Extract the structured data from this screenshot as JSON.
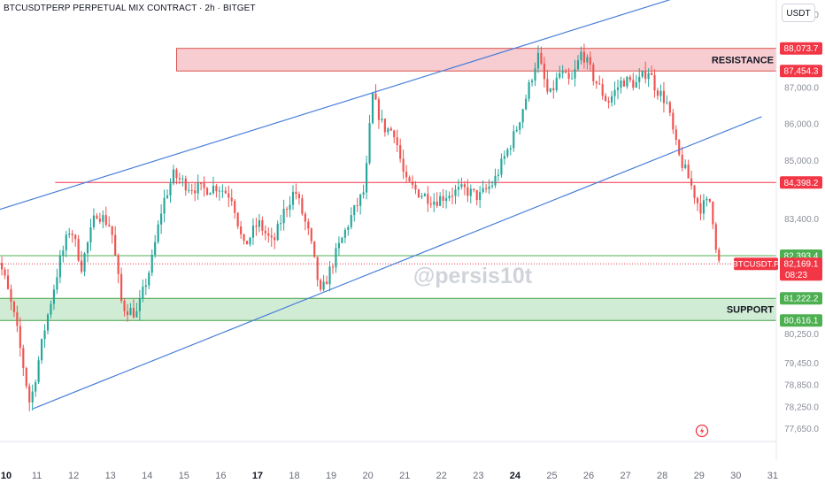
{
  "header": {
    "title": "BTCUSDTPERP PERPETUAL MIX CONTRACT · 2h · BITGET",
    "currency": "USDT"
  },
  "watermark": "@persis10t",
  "icons": {
    "flash": "lightning-bolt-icon"
  },
  "colors": {
    "up": "#26a69a",
    "down": "#ef5350",
    "channel": "#4a7fdb",
    "resistance_fill": "#f8cdd1",
    "resistance_border": "#d9534f",
    "support_fill": "#d1ecd4",
    "support_border": "#43a047",
    "level_red": "#f23645",
    "level_green": "#4caf50"
  },
  "chart_data": {
    "type": "candlestick",
    "title": "BTCUSDTPERP PERPETUAL MIX CONTRACT · 2h · BITGET",
    "interval": "2h",
    "y_axis": {
      "ticks": [
        "89,000.0",
        "87,000.0",
        "86,000.0",
        "85,000.0",
        "83,400.0",
        "80,250.0",
        "79,450.0",
        "78,850.0",
        "78,250.0",
        "77,650.0"
      ],
      "range": [
        77300,
        89400
      ]
    },
    "x_axis": {
      "labels": [
        "10",
        "11",
        "12",
        "13",
        "14",
        "15",
        "16",
        "17",
        "18",
        "19",
        "20",
        "21",
        "22",
        "23",
        "24",
        "25",
        "26",
        "27",
        "28",
        "29",
        "30",
        "31"
      ],
      "bold_labels": [
        "10",
        "17",
        "24"
      ],
      "range": [
        10,
        31.1
      ]
    },
    "price_labels": [
      {
        "text": "88,073.7",
        "value": 88073.7,
        "kind": "resistance"
      },
      {
        "text": "87,454.3",
        "value": 87454.3,
        "kind": "resistance"
      },
      {
        "text": "84,398.2",
        "value": 84398.2,
        "kind": "resistance"
      },
      {
        "text": "82,393.4",
        "value": 82393.4,
        "kind": "support"
      },
      {
        "text": "82,169.1",
        "value": 82169.1,
        "kind": "current",
        "countdown": "08:23"
      },
      {
        "text": "81,222.2",
        "value": 81222.2,
        "kind": "support"
      },
      {
        "text": "80,616.1",
        "value": 80616.1,
        "kind": "support"
      }
    ],
    "symbol_label": "BTCUSDT.P",
    "zones": [
      {
        "label": "RESISTANCE",
        "top": 88073.7,
        "bottom": 87454.3,
        "x_from": 14.8
      },
      {
        "label": "SUPPORT",
        "top": 81222.2,
        "bottom": 80616.1,
        "x_from": 9.8
      }
    ],
    "horizontal_lines": [
      {
        "value": 84398.2,
        "x_from": 11.5,
        "color": "red"
      },
      {
        "value": 82393.4,
        "x_from": 9.8,
        "color": "green"
      }
    ],
    "trend_lines": [
      {
        "from": [
          9.8,
          83600
        ],
        "to": [
          28.5,
          89500
        ]
      },
      {
        "from": [
          10.9,
          78200
        ],
        "to": [
          30.7,
          86200
        ]
      }
    ],
    "anchor_points": [
      [
        9.8,
        83000
      ],
      [
        10.2,
        81800
      ],
      [
        10.5,
        80600
      ],
      [
        10.9,
        78300
      ],
      [
        11.3,
        80400
      ],
      [
        11.7,
        82200
      ],
      [
        12.0,
        83200
      ],
      [
        12.3,
        82100
      ],
      [
        12.7,
        83600
      ],
      [
        13.1,
        83200
      ],
      [
        13.4,
        81000
      ],
      [
        13.8,
        80800
      ],
      [
        14.2,
        82200
      ],
      [
        14.5,
        83800
      ],
      [
        14.8,
        84600
      ],
      [
        15.2,
        84300
      ],
      [
        15.6,
        84200
      ],
      [
        16.0,
        84300
      ],
      [
        16.4,
        84000
      ],
      [
        16.7,
        82600
      ],
      [
        17.1,
        83300
      ],
      [
        17.5,
        82700
      ],
      [
        17.8,
        83600
      ],
      [
        18.1,
        84200
      ],
      [
        18.5,
        82900
      ],
      [
        18.8,
        81300
      ],
      [
        19.2,
        82400
      ],
      [
        19.6,
        83400
      ],
      [
        20.0,
        84200
      ],
      [
        20.2,
        86800
      ],
      [
        20.5,
        85900
      ],
      [
        20.8,
        85800
      ],
      [
        21.1,
        84400
      ],
      [
        21.5,
        84100
      ],
      [
        21.9,
        83900
      ],
      [
        22.3,
        84100
      ],
      [
        22.7,
        84200
      ],
      [
        23.1,
        84000
      ],
      [
        23.5,
        84400
      ],
      [
        23.8,
        85100
      ],
      [
        24.1,
        85800
      ],
      [
        24.4,
        86800
      ],
      [
        24.7,
        87900
      ],
      [
        25.0,
        86700
      ],
      [
        25.3,
        87400
      ],
      [
        25.6,
        87100
      ],
      [
        25.9,
        88000
      ],
      [
        26.2,
        87300
      ],
      [
        26.6,
        86600
      ],
      [
        27.0,
        87200
      ],
      [
        27.4,
        87100
      ],
      [
        27.7,
        87500
      ],
      [
        27.9,
        87000
      ],
      [
        28.2,
        86600
      ],
      [
        28.5,
        85200
      ],
      [
        28.8,
        84500
      ],
      [
        29.1,
        83700
      ],
      [
        29.4,
        83900
      ],
      [
        29.6,
        82200
      ]
    ]
  }
}
